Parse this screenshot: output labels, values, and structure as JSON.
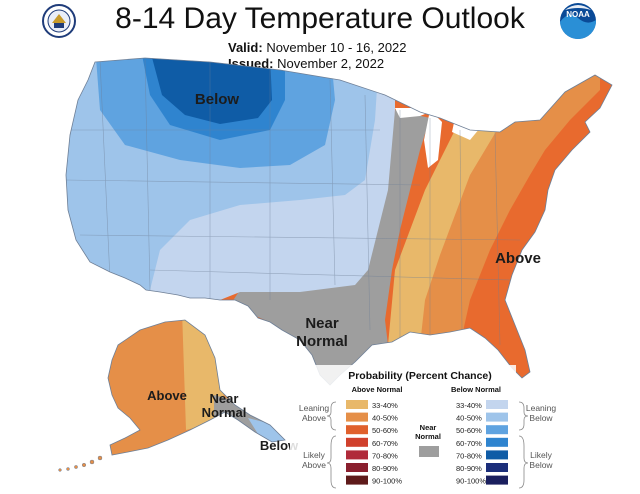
{
  "header": {
    "title": "8-14 Day Temperature Outlook",
    "valid_label": "Valid:",
    "valid_dates": "November 10 - 16, 2022",
    "issued_label": "Issued:",
    "issued_date": "November 2, 2022",
    "left_logo": "doc-seal-icon",
    "right_logo": "noaa-logo-icon",
    "right_logo_text": "NOAA"
  },
  "map": {
    "labels": {
      "below": "Below",
      "above": "Above",
      "near_line1": "Near",
      "near_line2": "Normal",
      "ak_above": "Above",
      "ak_near_line1": "Near",
      "ak_near_line2": "Normal",
      "ak_below": "Below"
    }
  },
  "legend": {
    "title": "Probability (Percent Chance)",
    "above_header": "Above Normal",
    "below_header": "Below Normal",
    "above_ranges": [
      "33-40%",
      "40-50%",
      "50-60%",
      "60-70%",
      "70-80%",
      "80-90%",
      "90-100%"
    ],
    "below_ranges": [
      "33-40%",
      "40-50%",
      "50-60%",
      "60-70%",
      "70-80%",
      "80-90%",
      "90-100%"
    ],
    "above_colors": [
      "#e8b86a",
      "#e58f48",
      "#e0602c",
      "#d0402c",
      "#b02a3a",
      "#8a1f2e",
      "#5e1a1a"
    ],
    "below_colors": [
      "#c3d5ee",
      "#9ec4ea",
      "#5fa3e0",
      "#2f84cf",
      "#0f5ca6",
      "#1b2e7a",
      "#1a1f5e"
    ],
    "near_line1": "Near",
    "near_line2": "Normal",
    "near_color": "#9e9e9e",
    "leaning_above_1": "Leaning",
    "leaning_above_2": "Above",
    "likely_above_1": "Likely",
    "likely_above_2": "Above",
    "leaning_below_1": "Leaning",
    "leaning_below_2": "Below",
    "likely_below_1": "Likely",
    "likely_below_2": "Below"
  }
}
